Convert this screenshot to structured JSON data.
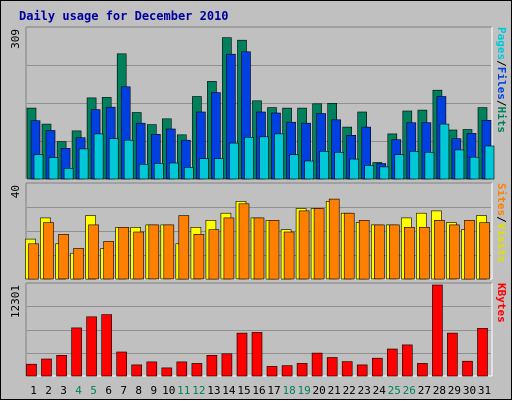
{
  "chart_data": [
    {
      "type": "bar",
      "title": "Daily usage for December 2010",
      "panel": "pages_files_hits",
      "ylabel_top": "309",
      "ymax": 309,
      "right_labels": [
        {
          "text": "Pages",
          "color": "#00c8d8"
        },
        {
          "text": "/",
          "color": "#000000"
        },
        {
          "text": "Files",
          "color": "#0040e0"
        },
        {
          "text": "/",
          "color": "#000000"
        },
        {
          "text": "Hits",
          "color": "#00805c"
        }
      ],
      "categories": [
        "1",
        "2",
        "3",
        "4",
        "5",
        "6",
        "7",
        "8",
        "9",
        "10",
        "11",
        "12",
        "13",
        "14",
        "15",
        "16",
        "17",
        "18",
        "19",
        "20",
        "21",
        "22",
        "23",
        "24",
        "25",
        "26",
        "27",
        "28",
        "29",
        "30",
        "31"
      ],
      "weekend_days": [
        "4",
        "5",
        "11",
        "12",
        "18",
        "19",
        "25",
        "26"
      ],
      "series": [
        {
          "name": "Hits",
          "color": "#00805c",
          "values": [
            146,
            113,
            77,
            99,
            167,
            168,
            258,
            137,
            112,
            124,
            91,
            170,
            201,
            291,
            286,
            161,
            147,
            146,
            146,
            155,
            156,
            107,
            138,
            34,
            93,
            140,
            142,
            183,
            101,
            102,
            147
          ]
        },
        {
          "name": "Files",
          "color": "#0040e0",
          "values": [
            120,
            100,
            63,
            85,
            143,
            148,
            190,
            115,
            92,
            103,
            80,
            138,
            178,
            257,
            262,
            138,
            136,
            117,
            115,
            135,
            122,
            90,
            107,
            32,
            81,
            116,
            116,
            170,
            83,
            94,
            121
          ]
        },
        {
          "name": "Pages",
          "color": "#00c8d8",
          "values": [
            50,
            44,
            22,
            62,
            93,
            83,
            80,
            30,
            32,
            33,
            24,
            42,
            42,
            74,
            86,
            87,
            93,
            50,
            37,
            57,
            55,
            41,
            28,
            25,
            50,
            57,
            55,
            113,
            60,
            45,
            68
          ]
        }
      ]
    },
    {
      "type": "bar",
      "panel": "sites_visits",
      "ylabel_top": "40",
      "ymax": 40,
      "right_labels": [
        {
          "text": "Sites",
          "color": "#ff8000"
        },
        {
          "text": "/",
          "color": "#000000"
        },
        {
          "text": "Visits",
          "color": "#e0e000"
        }
      ],
      "categories": [
        "1",
        "2",
        "3",
        "4",
        "5",
        "6",
        "7",
        "8",
        "9",
        "10",
        "11",
        "12",
        "13",
        "14",
        "15",
        "16",
        "17",
        "18",
        "19",
        "20",
        "21",
        "22",
        "23",
        "24",
        "25",
        "26",
        "27",
        "28",
        "29",
        "30",
        "31"
      ],
      "series": [
        {
          "name": "Visits",
          "color": "#ffff00",
          "values": [
            17,
            26,
            15,
            11,
            27,
            13,
            22,
            22,
            23,
            23,
            15,
            22,
            25,
            28,
            33,
            26,
            25,
            21,
            30,
            30,
            33,
            28,
            24,
            23,
            23,
            26,
            28,
            29,
            24,
            21,
            27
          ]
        },
        {
          "name": "Sites",
          "color": "#ff8000",
          "values": [
            15,
            24,
            19,
            13,
            23,
            16,
            22,
            20,
            23,
            23,
            27,
            19,
            21,
            26,
            32,
            26,
            25,
            20,
            29,
            30,
            34,
            28,
            25,
            23,
            23,
            22,
            22,
            25,
            23,
            25,
            24
          ]
        }
      ]
    },
    {
      "type": "bar",
      "panel": "kbytes",
      "ylabel_top": "12301",
      "ymax": 12301,
      "right_labels": [
        {
          "text": "KBytes",
          "color": "#ff0000"
        }
      ],
      "categories": [
        "1",
        "2",
        "3",
        "4",
        "5",
        "6",
        "7",
        "8",
        "9",
        "10",
        "11",
        "12",
        "13",
        "14",
        "15",
        "16",
        "17",
        "18",
        "19",
        "20",
        "21",
        "22",
        "23",
        "24",
        "25",
        "26",
        "27",
        "28",
        "29",
        "30",
        "31"
      ],
      "series": [
        {
          "name": "KBytes",
          "color": "#ff0000",
          "values": [
            1600,
            2300,
            2800,
            6500,
            8000,
            8300,
            3250,
            1500,
            1900,
            1100,
            1900,
            1700,
            2800,
            3000,
            5800,
            5900,
            1300,
            1400,
            1700,
            3100,
            2500,
            1950,
            1500,
            2400,
            3650,
            4200,
            1700,
            12301,
            5800,
            2000,
            6450
          ]
        }
      ]
    }
  ],
  "x_axis_color_weekday": "#000000",
  "x_axis_color_weekend": "#00805c"
}
